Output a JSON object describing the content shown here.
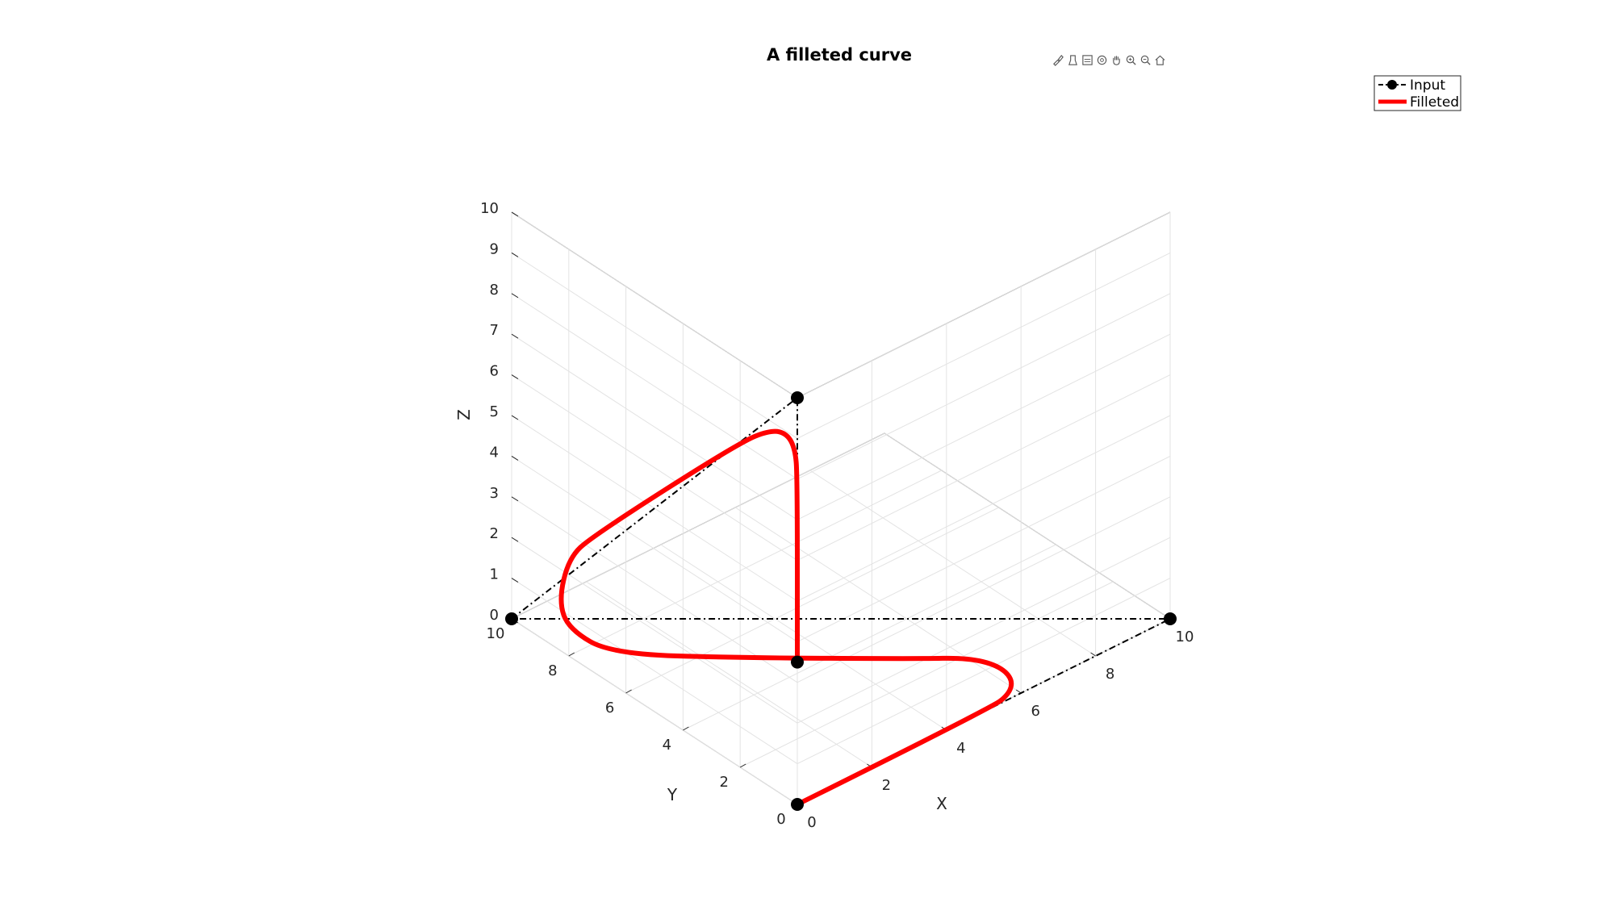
{
  "chart_data": {
    "type": "line",
    "title": "A filleted curve",
    "xlabel": "X",
    "ylabel": "Y",
    "zlabel": "Z",
    "xlim": [
      0,
      10
    ],
    "ylim": [
      0,
      10
    ],
    "zlim": [
      0,
      10
    ],
    "xticks": [
      0,
      2,
      4,
      6,
      8,
      10
    ],
    "yticks": [
      0,
      2,
      4,
      6,
      8,
      10
    ],
    "zticks": [
      0,
      1,
      2,
      3,
      4,
      5,
      6,
      7,
      8,
      9,
      10
    ],
    "grid": true,
    "legend_position": "top-right",
    "series": [
      {
        "name": "Input",
        "style": "dash-dot with circle markers",
        "color": "#000000",
        "points": [
          [
            0,
            0,
            0
          ],
          [
            10,
            0,
            0
          ],
          [
            0,
            10,
            0
          ],
          [
            0,
            0,
            10
          ],
          [
            0,
            0,
            3.5
          ]
        ]
      },
      {
        "name": "Filleted",
        "style": "solid",
        "color": "#ff0000",
        "points": [
          [
            0,
            0,
            0
          ],
          [
            5.2,
            0,
            0
          ],
          [
            5.8,
            0.15,
            0
          ],
          [
            6.2,
            0.55,
            0
          ],
          [
            6.3,
            1.2,
            0
          ],
          [
            6.0,
            1.9,
            0
          ],
          [
            5.25,
            2.6,
            0
          ],
          [
            2.6,
            5.3,
            0
          ],
          [
            0.7,
            7.4,
            0
          ],
          [
            0.15,
            8.2,
            0.5
          ],
          [
            0,
            8.35,
            1.2
          ],
          [
            0,
            8.0,
            2.4
          ],
          [
            0,
            7.2,
            3.3
          ],
          [
            0,
            2.0,
            8.0
          ],
          [
            0,
            0.9,
            8.8
          ],
          [
            0,
            0.35,
            8.95
          ],
          [
            0,
            0.08,
            8.7
          ],
          [
            0,
            0,
            8.1
          ],
          [
            0,
            0,
            3.5
          ]
        ]
      }
    ]
  },
  "toolbar": [
    "brush-icon",
    "datatip-icon",
    "export-icon",
    "rotate-icon",
    "pan-icon",
    "zoom-in-icon",
    "zoom-out-icon",
    "home-icon"
  ]
}
